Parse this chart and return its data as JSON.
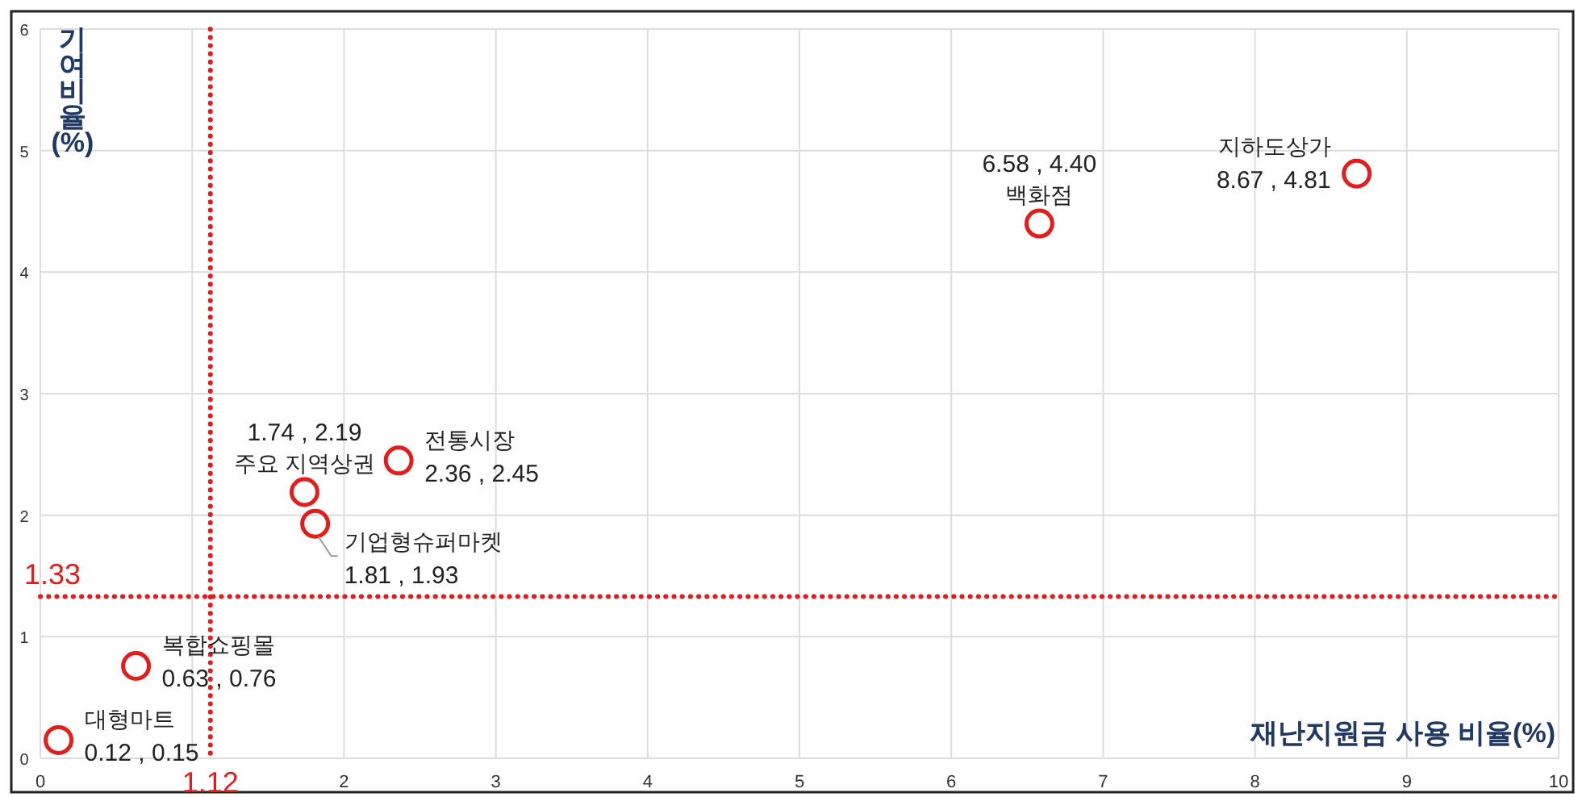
{
  "chart_data": {
    "type": "scatter",
    "xlabel": "재난지원금 사용 비율(%)",
    "ylabel": "기여 비율(%)",
    "xlim": [
      0,
      10
    ],
    "ylim": [
      0,
      6
    ],
    "xticks": [
      0,
      {
        "value": 1,
        "label": null
      },
      2,
      3,
      4,
      5,
      6,
      7,
      8,
      9,
      10
    ],
    "yticks": [
      0,
      1,
      2,
      3,
      4,
      5,
      6
    ],
    "grid": true,
    "marker": "circle",
    "ref_lines": [
      {
        "axis": "x",
        "value": 1.12,
        "label": "1.12",
        "color": "#e31c1c",
        "line_style": "dotted"
      },
      {
        "axis": "y",
        "value": 1.33,
        "label": "1.33",
        "color": "#e31c1c",
        "line_style": "dotted"
      }
    ],
    "series": [
      {
        "name": "대형마트",
        "color": "#e31c1c",
        "x": [
          0.12
        ],
        "values": [
          0.15
        ],
        "value_labels": [
          "0.12 , 0.15"
        ]
      },
      {
        "name": "복합쇼핑몰",
        "color": "#e31c1c",
        "x": [
          0.63
        ],
        "values": [
          0.76
        ],
        "value_labels": [
          "0.63 , 0.76"
        ]
      },
      {
        "name": "주요 지역상권",
        "color": "#e31c1c",
        "x": [
          1.74
        ],
        "values": [
          2.19
        ],
        "value_labels": [
          "1.74 , 2.19"
        ]
      },
      {
        "name": "기업형슈퍼마켓",
        "color": "#e31c1c",
        "x": [
          1.81
        ],
        "values": [
          1.93
        ],
        "value_labels": [
          "1.81 , 1.93"
        ]
      },
      {
        "name": "전통시장",
        "color": "#e31c1c",
        "x": [
          2.36
        ],
        "values": [
          2.45
        ],
        "value_labels": [
          "2.36 , 2.45"
        ]
      },
      {
        "name": "백화점",
        "color": "#e31c1c",
        "x": [
          6.58
        ],
        "values": [
          4.4
        ],
        "value_labels": [
          "6.58 , 4.40"
        ]
      },
      {
        "name": "지하도상가",
        "color": "#e31c1c",
        "x": [
          8.67
        ],
        "values": [
          4.81
        ],
        "value_labels": [
          "8.67 , 4.81"
        ]
      }
    ]
  }
}
